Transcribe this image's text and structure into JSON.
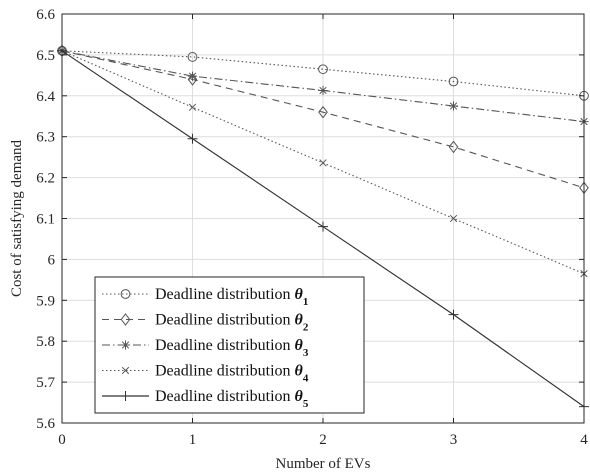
{
  "chart_data": {
    "type": "line",
    "xlabel": "Number of EVs",
    "ylabel": "Cost of satisfying demand",
    "x": [
      0,
      1,
      2,
      3,
      4
    ],
    "xlim": [
      0,
      4
    ],
    "ylim": [
      5.6,
      6.6
    ],
    "xticks": [
      0,
      1,
      2,
      3,
      4
    ],
    "xtick_labels": [
      "0",
      "1",
      "2",
      "3",
      "4"
    ],
    "yticks": [
      5.6,
      5.7,
      5.8,
      5.9,
      6.0,
      6.1,
      6.2,
      6.3,
      6.4,
      6.5,
      6.6
    ],
    "ytick_labels": [
      "5.6",
      "5.7",
      "5.8",
      "5.9",
      "6",
      "6.1",
      "6.2",
      "6.3",
      "6.4",
      "6.5",
      "6.6"
    ],
    "grid": true,
    "legend_position": "bottom-left",
    "series": [
      {
        "name": "Deadline distribution θ1",
        "legend_base": "Deadline distribution ",
        "legend_symbol": "θ",
        "legend_sub": "1",
        "values": [
          6.51,
          6.495,
          6.465,
          6.435,
          6.4
        ],
        "marker": "circle",
        "line_style": "dotted",
        "color": "#555555"
      },
      {
        "name": "Deadline distribution θ2",
        "legend_base": "Deadline distribution ",
        "legend_symbol": "θ",
        "legend_sub": "2",
        "values": [
          6.51,
          6.44,
          6.36,
          6.275,
          6.175
        ],
        "marker": "diamond",
        "line_style": "dashed",
        "color": "#555555"
      },
      {
        "name": "Deadline distribution θ3",
        "legend_base": "Deadline distribution ",
        "legend_symbol": "θ",
        "legend_sub": "3",
        "values": [
          6.51,
          6.448,
          6.413,
          6.375,
          6.337
        ],
        "marker": "asterisk",
        "line_style": "dashdot",
        "color": "#555555"
      },
      {
        "name": "Deadline distribution θ4",
        "legend_base": "Deadline distribution ",
        "legend_symbol": "θ",
        "legend_sub": "4",
        "values": [
          6.51,
          6.372,
          6.236,
          6.1,
          5.965
        ],
        "marker": "x",
        "line_style": "dotted",
        "color": "#555555"
      },
      {
        "name": "Deadline distribution θ5",
        "legend_base": "Deadline distribution ",
        "legend_symbol": "θ",
        "legend_sub": "5",
        "values": [
          6.51,
          6.295,
          6.08,
          5.865,
          5.64
        ],
        "marker": "plus",
        "line_style": "solid",
        "color": "#333333"
      }
    ]
  }
}
